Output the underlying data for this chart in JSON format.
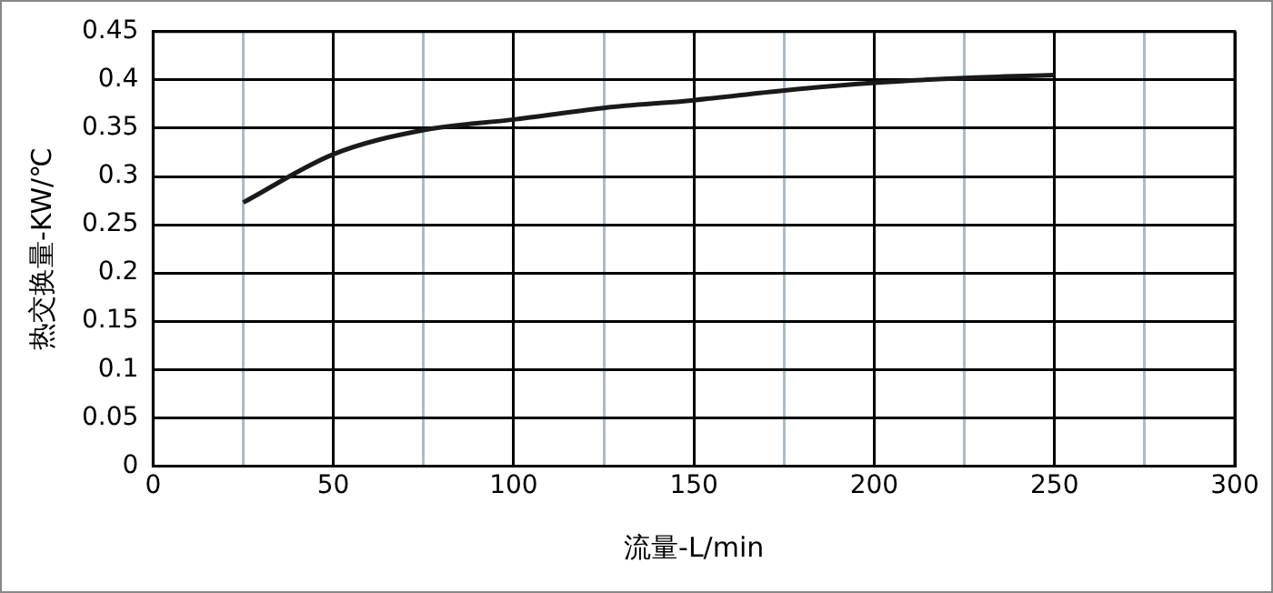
{
  "chart_data": {
    "type": "line",
    "xlabel": "流量-L/min",
    "ylabel": "热交换量-KW/℃",
    "x": [
      25,
      50,
      75,
      100,
      125,
      150,
      175,
      200,
      225,
      250
    ],
    "series": [
      {
        "color": "#1a1a1a",
        "values": [
          0.273,
          0.323,
          0.348,
          0.359,
          0.371,
          0.379,
          0.389,
          0.397,
          0.402,
          0.405
        ]
      }
    ],
    "xlim": [
      0,
      300
    ],
    "xticks": [
      0,
      {
        "value": 25,
        "label": null
      },
      50,
      {
        "value": 75,
        "label": null
      },
      100,
      {
        "value": 125,
        "label": null
      },
      150,
      {
        "value": 175,
        "label": null
      },
      200,
      {
        "value": 225,
        "label": null
      },
      250,
      {
        "value": 275,
        "label": null
      },
      300
    ],
    "ylim": [
      0,
      0.45
    ],
    "yticks": [
      0,
      0.05,
      0.1,
      0.15,
      0.2,
      0.25,
      0.3,
      0.35,
      0.4,
      0.45
    ],
    "grid": true,
    "legend": false,
    "marker": "none",
    "line_style": "solid"
  }
}
